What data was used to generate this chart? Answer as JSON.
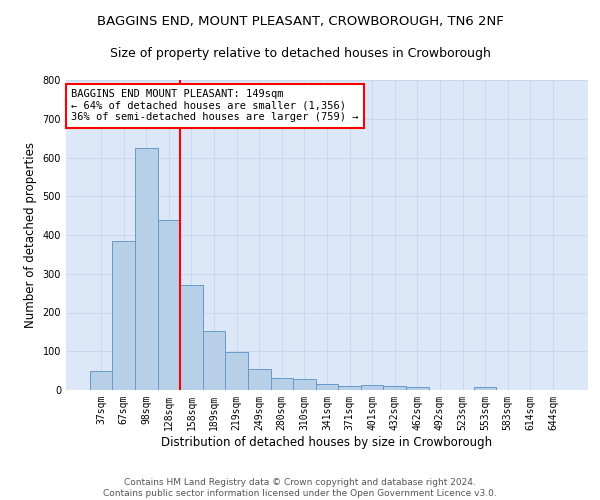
{
  "title": "BAGGINS END, MOUNT PLEASANT, CROWBOROUGH, TN6 2NF",
  "subtitle": "Size of property relative to detached houses in Crowborough",
  "xlabel": "Distribution of detached houses by size in Crowborough",
  "ylabel": "Number of detached properties",
  "bar_labels": [
    "37sqm",
    "67sqm",
    "98sqm",
    "128sqm",
    "158sqm",
    "189sqm",
    "219sqm",
    "249sqm",
    "280sqm",
    "310sqm",
    "341sqm",
    "371sqm",
    "401sqm",
    "432sqm",
    "462sqm",
    "492sqm",
    "523sqm",
    "553sqm",
    "583sqm",
    "614sqm",
    "644sqm"
  ],
  "bar_values": [
    50,
    385,
    625,
    440,
    270,
    153,
    97,
    55,
    30,
    28,
    15,
    10,
    12,
    10,
    8,
    0,
    0,
    7,
    0,
    0,
    0
  ],
  "bar_color": "#b8cfe8",
  "bar_edge_color": "#6699cc",
  "vline_color": "red",
  "vline_pos": 3.5,
  "annotation_text": "BAGGINS END MOUNT PLEASANT: 149sqm\n← 64% of detached houses are smaller (1,356)\n36% of semi-detached houses are larger (759) →",
  "annotation_box_color": "white",
  "annotation_box_edge": "red",
  "ylim": [
    0,
    800
  ],
  "yticks": [
    0,
    100,
    200,
    300,
    400,
    500,
    600,
    700,
    800
  ],
  "grid_color": "#c8d8ee",
  "bg_color": "#dce8f8",
  "footnote": "Contains HM Land Registry data © Crown copyright and database right 2024.\nContains public sector information licensed under the Open Government Licence v3.0.",
  "title_fontsize": 9.5,
  "subtitle_fontsize": 9,
  "ylabel_fontsize": 8.5,
  "xlabel_fontsize": 8.5,
  "tick_fontsize": 7,
  "annot_fontsize": 7.5,
  "footnote_fontsize": 6.5
}
